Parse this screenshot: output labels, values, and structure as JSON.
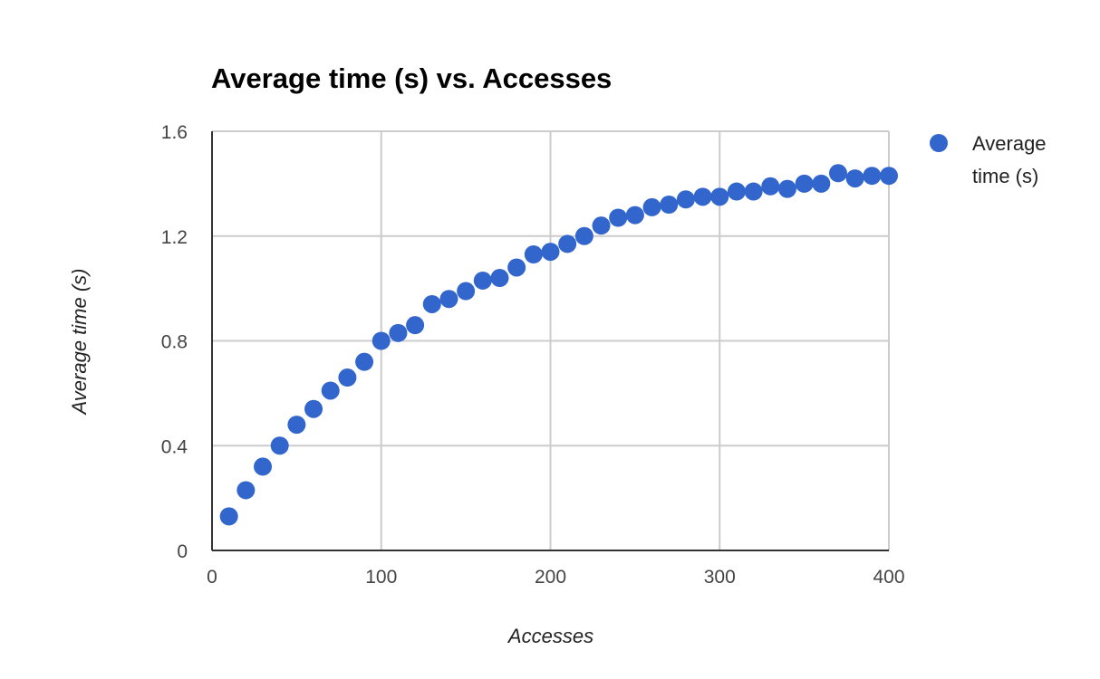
{
  "chart_data": {
    "type": "scatter",
    "title": "Average time (s) vs. Accesses",
    "xlabel": "Accesses",
    "ylabel": "Average time (s)",
    "xlim": [
      0,
      400
    ],
    "ylim": [
      0,
      1.6
    ],
    "x_ticks": [
      "0",
      "100",
      "200",
      "300",
      "400"
    ],
    "y_ticks": [
      "0",
      "0.4",
      "0.8",
      "1.2",
      "1.6"
    ],
    "grid": true,
    "legend_position": "right",
    "legend_lines": [
      "Average",
      "time (s)"
    ],
    "series": [
      {
        "name": "Average time (s)",
        "color": "#3366cc",
        "points": [
          [
            10,
            0.13
          ],
          [
            20,
            0.23
          ],
          [
            30,
            0.32
          ],
          [
            40,
            0.4
          ],
          [
            50,
            0.48
          ],
          [
            60,
            0.54
          ],
          [
            70,
            0.61
          ],
          [
            80,
            0.66
          ],
          [
            90,
            0.72
          ],
          [
            100,
            0.8
          ],
          [
            110,
            0.83
          ],
          [
            120,
            0.86
          ],
          [
            130,
            0.94
          ],
          [
            140,
            0.96
          ],
          [
            150,
            0.99
          ],
          [
            160,
            1.03
          ],
          [
            170,
            1.04
          ],
          [
            180,
            1.08
          ],
          [
            190,
            1.13
          ],
          [
            200,
            1.14
          ],
          [
            210,
            1.17
          ],
          [
            220,
            1.2
          ],
          [
            230,
            1.24
          ],
          [
            240,
            1.27
          ],
          [
            250,
            1.28
          ],
          [
            260,
            1.31
          ],
          [
            270,
            1.32
          ],
          [
            280,
            1.34
          ],
          [
            290,
            1.35
          ],
          [
            300,
            1.35
          ],
          [
            310,
            1.37
          ],
          [
            320,
            1.37
          ],
          [
            330,
            1.39
          ],
          [
            340,
            1.38
          ],
          [
            350,
            1.4
          ],
          [
            360,
            1.4
          ],
          [
            370,
            1.44
          ],
          [
            380,
            1.42
          ],
          [
            390,
            1.43
          ],
          [
            400,
            1.43
          ]
        ]
      }
    ]
  }
}
